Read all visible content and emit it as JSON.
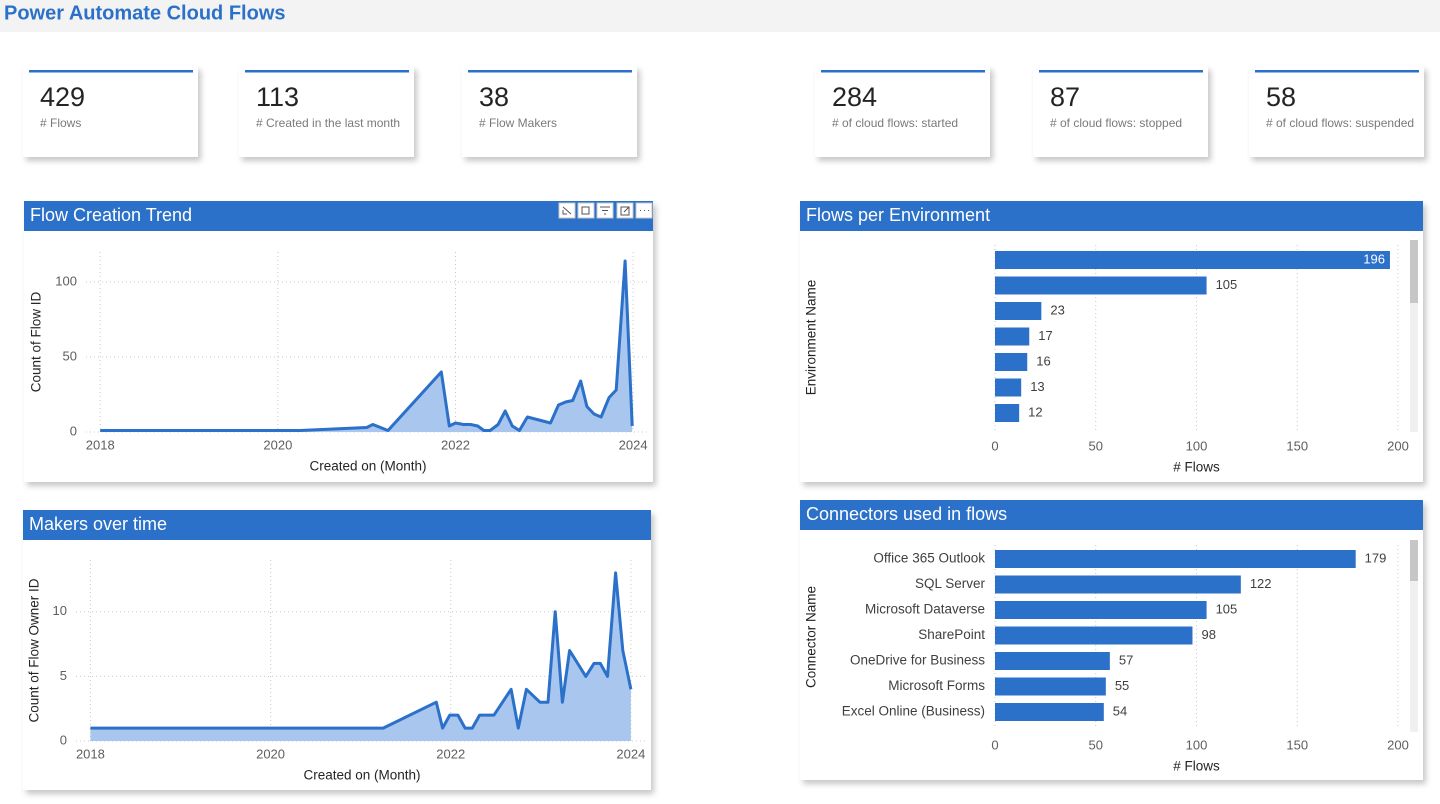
{
  "header": {
    "title": "Power Automate Cloud Flows"
  },
  "kpis": [
    {
      "value": 429,
      "label": "# Flows"
    },
    {
      "value": 113,
      "label": "# Created in the last month"
    },
    {
      "value": 38,
      "label": "# Flow Makers"
    },
    {
      "value": 284,
      "label": "# of cloud flows: started"
    },
    {
      "value": 87,
      "label": "# of cloud flows: stopped"
    },
    {
      "value": 58,
      "label": "# of cloud flows: suspended"
    }
  ],
  "chart_data": [
    {
      "type": "area",
      "title": "Flow Creation Trend",
      "x_label": "Created on (Month)",
      "y_label": "Count of Flow ID",
      "color": "#2b70c9",
      "fill": "#a9c6ee",
      "x": [
        2018.0,
        2019.0,
        2020.25,
        2021.0,
        2021.07,
        2021.24,
        2021.84,
        2021.93,
        2022.0,
        2022.09,
        2022.17,
        2022.25,
        2022.32,
        2022.39,
        2022.48,
        2022.56,
        2022.64,
        2022.72,
        2022.81,
        2023.07,
        2023.16,
        2023.24,
        2023.32,
        2023.41,
        2023.48,
        2023.56,
        2023.64,
        2023.73,
        2023.81,
        2023.91,
        2023.99
      ],
      "values": [
        1,
        1,
        1,
        3,
        5,
        1,
        40,
        4,
        6,
        5,
        5,
        4,
        1,
        1,
        5,
        14,
        4,
        1,
        10,
        6,
        18,
        20,
        21,
        34,
        17,
        12,
        10,
        23,
        28,
        114,
        4
      ],
      "xlim": [
        2017.84,
        2024.19
      ],
      "xticks": [
        2018,
        2020,
        2022,
        2024
      ],
      "ylim": [
        0,
        120
      ],
      "yticks": [
        0,
        50,
        100
      ],
      "grid": true
    },
    {
      "type": "area",
      "title": "Makers over time",
      "x_label": "Created on (Month)",
      "y_label": "Count of Flow Owner ID",
      "color": "#2b70c9",
      "fill": "#a9c6ee",
      "x": [
        2018.0,
        2021.25,
        2021.84,
        2021.91,
        2021.99,
        2022.08,
        2022.16,
        2022.24,
        2022.32,
        2022.48,
        2022.67,
        2022.75,
        2022.84,
        2022.99,
        2023.08,
        2023.16,
        2023.24,
        2023.32,
        2023.5,
        2023.59,
        2023.66,
        2023.74,
        2023.83,
        2023.91,
        2024.0
      ],
      "values": [
        1,
        1,
        3,
        1,
        2,
        2,
        1,
        1,
        2,
        2,
        4,
        1,
        4,
        3,
        3,
        10,
        3,
        7,
        5,
        6,
        6,
        5,
        13,
        7,
        4
      ],
      "xlim": [
        2017.84,
        2024.19
      ],
      "xticks": [
        2018,
        2020,
        2022,
        2024
      ],
      "ylim": [
        0,
        14
      ],
      "yticks": [
        0,
        5,
        10
      ],
      "grid": true
    },
    {
      "type": "bar",
      "title": "Flows per Environment",
      "x_label": "# Flows",
      "y_label": "Environment Name",
      "color": "#2b70c9",
      "categories": [
        null,
        null,
        null,
        null,
        null,
        null,
        null
      ],
      "values": [
        196,
        105,
        23,
        17,
        16,
        13,
        12
      ],
      "xlim": [
        0,
        200
      ],
      "xticks": [
        0,
        50,
        100,
        150,
        200
      ],
      "grid": true
    },
    {
      "type": "bar",
      "title": "Connectors used in flows",
      "x_label": "# Flows",
      "y_label": "Connector Name",
      "color": "#2b70c9",
      "categories": [
        "Office 365 Outlook",
        "SQL Server",
        "Microsoft Dataverse",
        "SharePoint",
        "OneDrive for Business",
        "Microsoft Forms",
        "Excel Online (Business)"
      ],
      "values": [
        179,
        122,
        105,
        98,
        57,
        55,
        54
      ],
      "xlim": [
        0,
        200
      ],
      "xticks": [
        0,
        50,
        100,
        150,
        200
      ],
      "grid": true
    }
  ]
}
